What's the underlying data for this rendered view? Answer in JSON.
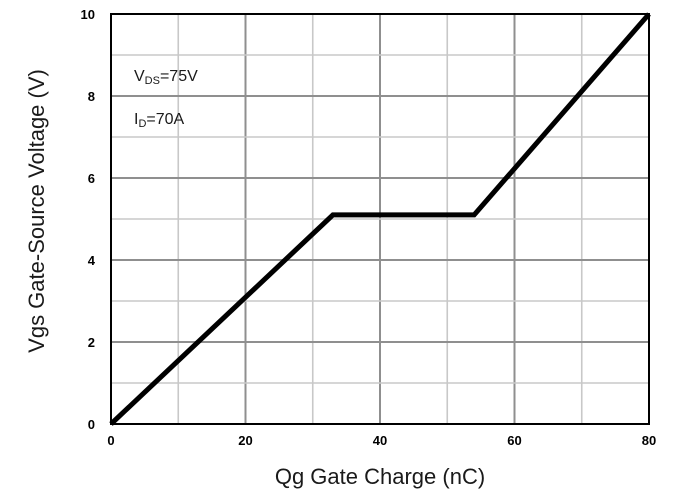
{
  "chart_data": {
    "type": "line",
    "title": "",
    "xlabel": "Qg Gate Charge (nC)",
    "ylabel": "Vgs Gate-Source Voltage (V)",
    "xlim": [
      0,
      80
    ],
    "ylim": [
      0,
      10
    ],
    "x_ticks": [
      "0",
      "20",
      "40",
      "60",
      "80"
    ],
    "y_ticks": [
      "0",
      "2",
      "4",
      "6",
      "8",
      "10"
    ],
    "grid": true,
    "x_minor_step": 10,
    "y_minor_step": 1,
    "series": [
      {
        "x": [
          0,
          33,
          54,
          80
        ],
        "y": [
          0,
          5.1,
          5.1,
          10
        ],
        "color": "#000000"
      }
    ],
    "annotations": {
      "vds": {
        "main": "V",
        "sub": "DS",
        "value": "=75V"
      },
      "id": {
        "main": "I",
        "sub": "D",
        "value": "=70A"
      }
    }
  }
}
